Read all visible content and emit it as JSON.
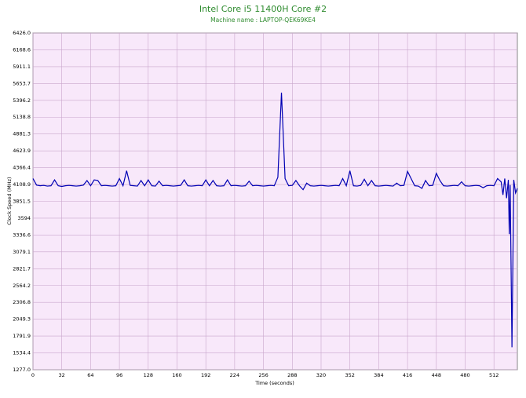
{
  "chart_data": {
    "type": "line",
    "title": "Intel Core i5 11400H Core #2",
    "subtitle": "Machine name : LAPTOP-QEK69KE4",
    "x_label": "Time (seconds)",
    "y_label": "Clock Speed (MHz)",
    "xlim": [
      0,
      538
    ],
    "ylim": [
      1277,
      6426
    ],
    "xticks": [
      0,
      32,
      64,
      96,
      128,
      160,
      192,
      224,
      256,
      288,
      320,
      352,
      384,
      416,
      448,
      480,
      512
    ],
    "yticks": [
      {
        "value": 1277,
        "label": "1277.0"
      },
      1534.4,
      1791.9,
      2049.3,
      2306.8,
      2564.2,
      2821.7,
      3079.1,
      3336.6,
      3594.0,
      3851.5,
      4108.9,
      4366.4,
      4623.9,
      4881.3,
      5138.8,
      5396.2,
      5653.7,
      5911.1,
      6168.6,
      {
        "value": 6426,
        "label": "6426.0"
      }
    ],
    "grid": true,
    "series": [
      {
        "color": "#0000b4",
        "x": [
          0,
          4,
          8,
          12,
          16,
          20,
          24,
          28,
          32,
          36,
          40,
          44,
          48,
          52,
          56,
          60,
          64,
          68,
          72,
          76,
          80,
          84,
          88,
          92,
          96,
          100,
          104,
          108,
          112,
          116,
          120,
          124,
          128,
          132,
          136,
          140,
          144,
          148,
          152,
          156,
          160,
          164,
          168,
          172,
          176,
          180,
          184,
          188,
          192,
          196,
          200,
          204,
          208,
          212,
          216,
          220,
          224,
          228,
          232,
          236,
          240,
          244,
          248,
          252,
          256,
          260,
          264,
          268,
          272,
          276,
          280,
          284,
          288,
          292,
          296,
          300,
          304,
          308,
          312,
          316,
          320,
          324,
          328,
          332,
          336,
          340,
          344,
          348,
          352,
          356,
          360,
          364,
          368,
          372,
          376,
          380,
          384,
          388,
          392,
          396,
          400,
          404,
          408,
          412,
          416,
          420,
          424,
          428,
          432,
          436,
          440,
          444,
          448,
          452,
          456,
          460,
          464,
          468,
          472,
          476,
          480,
          484,
          488,
          492,
          496,
          500,
          504,
          508,
          512,
          516,
          520,
          522,
          524,
          526,
          528,
          529,
          530,
          532,
          534,
          536,
          538
        ],
        "values": [
          4200,
          4100,
          4090,
          4095,
          4085,
          4090,
          4180,
          4090,
          4080,
          4090,
          4095,
          4090,
          4085,
          4090,
          4100,
          4170,
          4090,
          4180,
          4170,
          4090,
          4095,
          4090,
          4085,
          4090,
          4200,
          4090,
          4320,
          4095,
          4090,
          4085,
          4170,
          4090,
          4180,
          4090,
          4085,
          4160,
          4090,
          4095,
          4090,
          4085,
          4090,
          4095,
          4180,
          4090,
          4085,
          4090,
          4095,
          4090,
          4180,
          4090,
          4170,
          4090,
          4085,
          4090,
          4180,
          4090,
          4095,
          4090,
          4085,
          4090,
          4160,
          4090,
          4095,
          4090,
          4085,
          4090,
          4095,
          4090,
          4220,
          5514,
          4200,
          4090,
          4095,
          4170,
          4090,
          4030,
          4130,
          4090,
          4085,
          4090,
          4095,
          4090,
          4085,
          4090,
          4095,
          4090,
          4200,
          4090,
          4320,
          4090,
          4085,
          4095,
          4190,
          4090,
          4170,
          4090,
          4085,
          4090,
          4095,
          4090,
          4085,
          4130,
          4090,
          4095,
          4310,
          4200,
          4090,
          4085,
          4050,
          4170,
          4090,
          4095,
          4280,
          4170,
          4090,
          4085,
          4090,
          4095,
          4090,
          4150,
          4090,
          4085,
          4090,
          4095,
          4090,
          4060,
          4090,
          4095,
          4090,
          4200,
          4150,
          3950,
          4200,
          3900,
          4180,
          3350,
          4100,
          1620,
          4180,
          3980,
          4050
        ]
      }
    ]
  }
}
